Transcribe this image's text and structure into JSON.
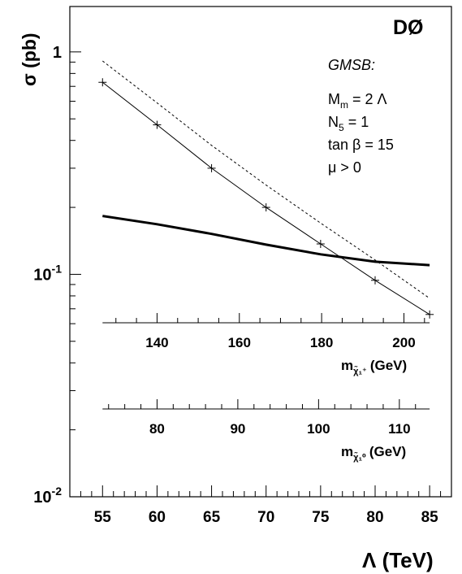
{
  "chart_data": {
    "type": "line",
    "title": "DØ",
    "xlabel": "Λ (TeV)",
    "ylabel": "σ (pb)",
    "xlim": [
      52,
      87
    ],
    "ylim": [
      0.01,
      1.6
    ],
    "y_scale": "log",
    "x_ticks": [
      55,
      60,
      65,
      70,
      75,
      80,
      85
    ],
    "y_ticks": [
      {
        "value": 1,
        "base": "1",
        "exp": ""
      },
      {
        "value": 0.1,
        "base": "10",
        "exp": "-1"
      },
      {
        "value": 0.01,
        "base": "10",
        "exp": "-2"
      }
    ],
    "annotation": {
      "heading": "GMSB:",
      "lines": [
        {
          "main": "M",
          "sub": "m",
          "rest": " = 2 Λ"
        },
        {
          "main": "N",
          "sub": "5",
          "rest": " = 1"
        },
        {
          "main": "tan β = 15",
          "sub": "",
          "rest": ""
        },
        {
          "main": "μ > 0",
          "sub": "",
          "rest": ""
        }
      ]
    },
    "series": [
      {
        "style": "thin-with-markers",
        "x": [
          55,
          60,
          65,
          70,
          75,
          80,
          85
        ],
        "y": [
          0.73,
          0.47,
          0.3,
          0.2,
          0.137,
          0.094,
          0.066
        ]
      },
      {
        "style": "dotted",
        "x": [
          55,
          60,
          65,
          70,
          75,
          80,
          85
        ],
        "y": [
          0.91,
          0.59,
          0.38,
          0.252,
          0.17,
          0.116,
          0.078
        ]
      },
      {
        "style": "thick",
        "x": [
          55,
          60,
          65,
          70,
          75,
          80,
          85
        ],
        "y": [
          0.183,
          0.168,
          0.152,
          0.136,
          0.123,
          0.114,
          0.11
        ]
      }
    ],
    "secondary_axes": [
      {
        "label_main": "m",
        "label_sub": "χ̃₁⁺",
        "label_unit": "(GeV)",
        "unit_per_tev": 2.65,
        "labeled_ticks": [
          140,
          160,
          180,
          200
        ],
        "minor_step": 5,
        "range": [
          125,
          212
        ]
      },
      {
        "label_main": "m",
        "label_sub": "χ̃₁⁰",
        "label_unit": "(GeV)",
        "unit_per_tev": 1.35,
        "labeled_ticks": [
          80,
          90,
          100,
          110
        ],
        "minor_step": 2,
        "range": [
          73,
          115
        ]
      }
    ]
  }
}
